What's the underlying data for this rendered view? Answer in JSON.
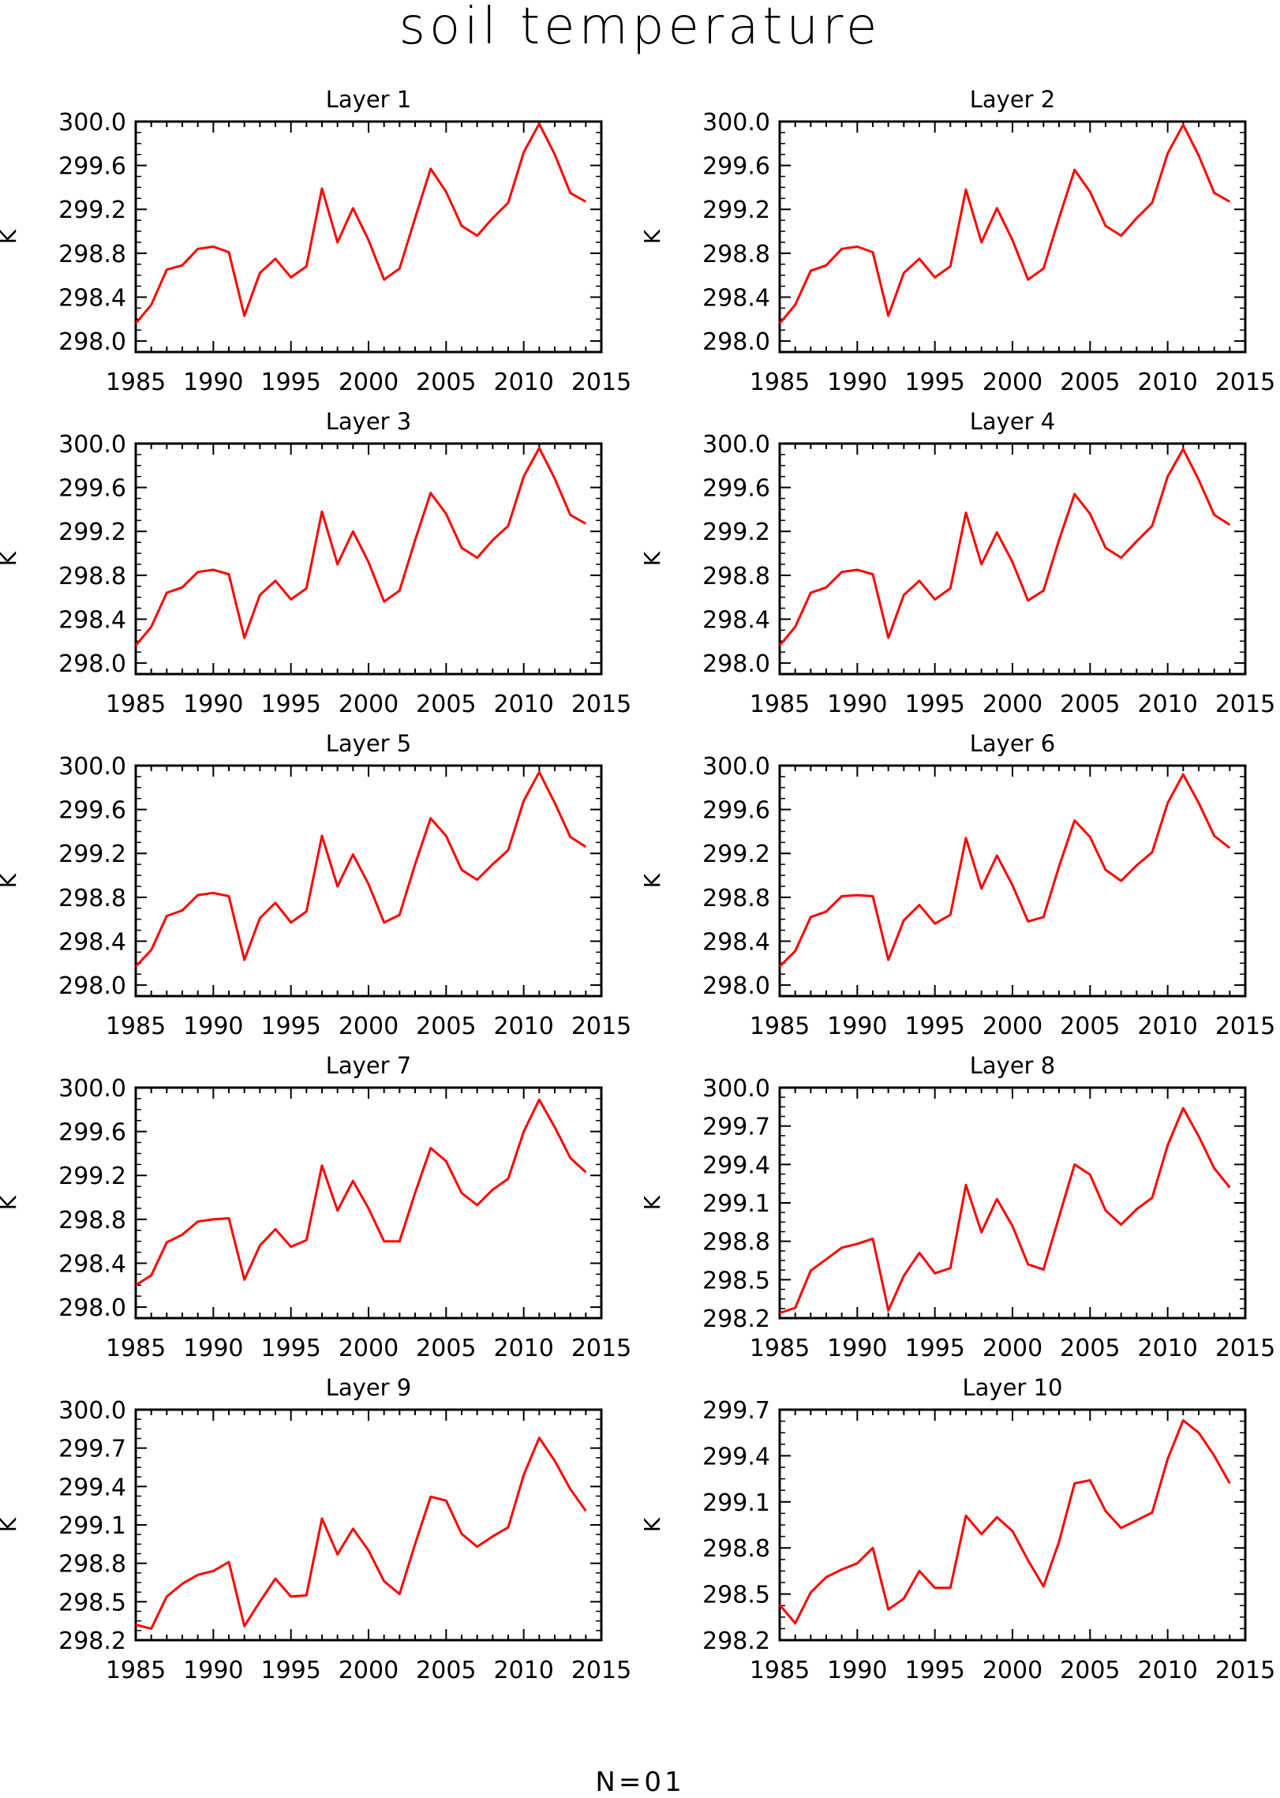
{
  "title": "soil temperature",
  "footer": "N=01",
  "line_color": "#ff0000",
  "chart_data": [
    {
      "type": "line",
      "title": "Layer 1",
      "ylabel": "K",
      "xlabel": "",
      "xlim": [
        1985,
        2015
      ],
      "ylim": [
        297.9,
        300.0
      ],
      "xticks": [
        "1985",
        "1990",
        "1995",
        "2000",
        "2005",
        "2010",
        "2015"
      ],
      "yticks": [
        "298.0",
        "298.4",
        "298.8",
        "299.2",
        "299.6",
        "300.0"
      ],
      "x": [
        1985,
        1986,
        1987,
        1988,
        1989,
        1990,
        1991,
        1992,
        1993,
        1994,
        1995,
        1996,
        1997,
        1998,
        1999,
        2000,
        2001,
        2002,
        2003,
        2004,
        2005,
        2006,
        2007,
        2008,
        2009,
        2010,
        2011,
        2012,
        2013,
        2014
      ],
      "series": [
        {
          "values": [
            298.16,
            298.33,
            298.65,
            298.69,
            298.84,
            298.86,
            298.81,
            298.23,
            298.62,
            298.75,
            298.58,
            298.68,
            299.39,
            298.9,
            299.21,
            298.92,
            298.56,
            298.66,
            299.12,
            299.57,
            299.36,
            299.05,
            298.96,
            299.12,
            299.26,
            299.72,
            299.98,
            299.7,
            299.35,
            299.27
          ]
        }
      ]
    },
    {
      "type": "line",
      "title": "Layer 2",
      "ylabel": "K",
      "xlabel": "",
      "xlim": [
        1985,
        2015
      ],
      "ylim": [
        297.9,
        300.0
      ],
      "xticks": [
        "1985",
        "1990",
        "1995",
        "2000",
        "2005",
        "2010",
        "2015"
      ],
      "yticks": [
        "298.0",
        "298.4",
        "298.8",
        "299.2",
        "299.6",
        "300.0"
      ],
      "x": [
        1985,
        1986,
        1987,
        1988,
        1989,
        1990,
        1991,
        1992,
        1993,
        1994,
        1995,
        1996,
        1997,
        1998,
        1999,
        2000,
        2001,
        2002,
        2003,
        2004,
        2005,
        2006,
        2007,
        2008,
        2009,
        2010,
        2011,
        2012,
        2013,
        2014
      ],
      "series": [
        {
          "values": [
            298.16,
            298.33,
            298.64,
            298.69,
            298.84,
            298.86,
            298.81,
            298.23,
            298.62,
            298.75,
            298.58,
            298.68,
            299.38,
            298.9,
            299.21,
            298.92,
            298.56,
            298.66,
            299.12,
            299.56,
            299.36,
            299.05,
            298.96,
            299.12,
            299.26,
            299.71,
            299.97,
            299.69,
            299.35,
            299.27
          ]
        }
      ]
    },
    {
      "type": "line",
      "title": "Layer 3",
      "ylabel": "K",
      "xlabel": "",
      "xlim": [
        1985,
        2015
      ],
      "ylim": [
        297.9,
        300.0
      ],
      "xticks": [
        "1985",
        "1990",
        "1995",
        "2000",
        "2005",
        "2010",
        "2015"
      ],
      "yticks": [
        "298.0",
        "298.4",
        "298.8",
        "299.2",
        "299.6",
        "300.0"
      ],
      "x": [
        1985,
        1986,
        1987,
        1988,
        1989,
        1990,
        1991,
        1992,
        1993,
        1994,
        1995,
        1996,
        1997,
        1998,
        1999,
        2000,
        2001,
        2002,
        2003,
        2004,
        2005,
        2006,
        2007,
        2008,
        2009,
        2010,
        2011,
        2012,
        2013,
        2014
      ],
      "series": [
        {
          "values": [
            298.16,
            298.33,
            298.64,
            298.69,
            298.83,
            298.85,
            298.81,
            298.23,
            298.62,
            298.75,
            298.58,
            298.68,
            299.38,
            298.9,
            299.2,
            298.92,
            298.56,
            298.66,
            299.12,
            299.55,
            299.36,
            299.05,
            298.96,
            299.12,
            299.25,
            299.7,
            299.96,
            299.68,
            299.35,
            299.27
          ]
        }
      ]
    },
    {
      "type": "line",
      "title": "Layer 4",
      "ylabel": "K",
      "xlabel": "",
      "xlim": [
        1985,
        2015
      ],
      "ylim": [
        297.9,
        300.0
      ],
      "xticks": [
        "1985",
        "1990",
        "1995",
        "2000",
        "2005",
        "2010",
        "2015"
      ],
      "yticks": [
        "298.0",
        "298.4",
        "298.8",
        "299.2",
        "299.6",
        "300.0"
      ],
      "x": [
        1985,
        1986,
        1987,
        1988,
        1989,
        1990,
        1991,
        1992,
        1993,
        1994,
        1995,
        1996,
        1997,
        1998,
        1999,
        2000,
        2001,
        2002,
        2003,
        2004,
        2005,
        2006,
        2007,
        2008,
        2009,
        2010,
        2011,
        2012,
        2013,
        2014
      ],
      "series": [
        {
          "values": [
            298.16,
            298.33,
            298.64,
            298.69,
            298.83,
            298.85,
            298.81,
            298.23,
            298.62,
            298.75,
            298.58,
            298.68,
            299.37,
            298.9,
            299.19,
            298.92,
            298.57,
            298.66,
            299.12,
            299.54,
            299.36,
            299.05,
            298.96,
            299.11,
            299.25,
            299.7,
            299.95,
            299.67,
            299.35,
            299.26
          ]
        }
      ]
    },
    {
      "type": "line",
      "title": "Layer 5",
      "ylabel": "K",
      "xlabel": "",
      "xlim": [
        1985,
        2015
      ],
      "ylim": [
        297.9,
        300.0
      ],
      "xticks": [
        "1985",
        "1990",
        "1995",
        "2000",
        "2005",
        "2010",
        "2015"
      ],
      "yticks": [
        "298.0",
        "298.4",
        "298.8",
        "299.2",
        "299.6",
        "300.0"
      ],
      "x": [
        1985,
        1986,
        1987,
        1988,
        1989,
        1990,
        1991,
        1992,
        1993,
        1994,
        1995,
        1996,
        1997,
        1998,
        1999,
        2000,
        2001,
        2002,
        2003,
        2004,
        2005,
        2006,
        2007,
        2008,
        2009,
        2010,
        2011,
        2012,
        2013,
        2014
      ],
      "series": [
        {
          "values": [
            298.17,
            298.32,
            298.63,
            298.68,
            298.82,
            298.84,
            298.81,
            298.23,
            298.61,
            298.75,
            298.57,
            298.67,
            299.36,
            298.9,
            299.19,
            298.92,
            298.57,
            298.64,
            299.1,
            299.52,
            299.36,
            299.05,
            298.96,
            299.1,
            299.23,
            299.68,
            299.94,
            299.66,
            299.35,
            299.26
          ]
        }
      ]
    },
    {
      "type": "line",
      "title": "Layer 6",
      "ylabel": "K",
      "xlabel": "",
      "xlim": [
        1985,
        2015
      ],
      "ylim": [
        297.9,
        300.0
      ],
      "xticks": [
        "1985",
        "1990",
        "1995",
        "2000",
        "2005",
        "2010",
        "2015"
      ],
      "yticks": [
        "298.0",
        "298.4",
        "298.8",
        "299.2",
        "299.6",
        "300.0"
      ],
      "x": [
        1985,
        1986,
        1987,
        1988,
        1989,
        1990,
        1991,
        1992,
        1993,
        1994,
        1995,
        1996,
        1997,
        1998,
        1999,
        2000,
        2001,
        2002,
        2003,
        2004,
        2005,
        2006,
        2007,
        2008,
        2009,
        2010,
        2011,
        2012,
        2013,
        2014
      ],
      "series": [
        {
          "values": [
            298.17,
            298.31,
            298.62,
            298.67,
            298.81,
            298.82,
            298.81,
            298.23,
            298.59,
            298.73,
            298.56,
            298.64,
            299.34,
            298.88,
            299.18,
            298.91,
            298.58,
            298.62,
            299.08,
            299.5,
            299.35,
            299.05,
            298.95,
            299.09,
            299.21,
            299.66,
            299.92,
            299.66,
            299.36,
            299.25
          ]
        }
      ]
    },
    {
      "type": "line",
      "title": "Layer 7",
      "ylabel": "K",
      "xlabel": "",
      "xlim": [
        1985,
        2015
      ],
      "ylim": [
        297.9,
        300.0
      ],
      "xticks": [
        "1985",
        "1990",
        "1995",
        "2000",
        "2005",
        "2010",
        "2015"
      ],
      "yticks": [
        "298.0",
        "298.4",
        "298.8",
        "299.2",
        "299.6",
        "300.0"
      ],
      "x": [
        1985,
        1986,
        1987,
        1988,
        1989,
        1990,
        1991,
        1992,
        1993,
        1994,
        1995,
        1996,
        1997,
        1998,
        1999,
        2000,
        2001,
        2002,
        2003,
        2004,
        2005,
        2006,
        2007,
        2008,
        2009,
        2010,
        2011,
        2012,
        2013,
        2014
      ],
      "series": [
        {
          "values": [
            298.2,
            298.29,
            298.59,
            298.66,
            298.78,
            298.8,
            298.81,
            298.25,
            298.56,
            298.71,
            298.55,
            298.61,
            299.29,
            298.88,
            299.15,
            298.9,
            298.6,
            298.6,
            299.04,
            299.45,
            299.33,
            299.04,
            298.93,
            299.07,
            299.17,
            299.6,
            299.89,
            299.64,
            299.36,
            299.23
          ]
        }
      ]
    },
    {
      "type": "line",
      "title": "Layer 8",
      "ylabel": "K",
      "xlabel": "",
      "xlim": [
        1985,
        2015
      ],
      "ylim": [
        298.2,
        300.0
      ],
      "xticks": [
        "1985",
        "1990",
        "1995",
        "2000",
        "2005",
        "2010",
        "2015"
      ],
      "yticks": [
        "298.2",
        "298.5",
        "298.8",
        "299.1",
        "299.4",
        "299.7",
        "300.0"
      ],
      "x": [
        1985,
        1986,
        1987,
        1988,
        1989,
        1990,
        1991,
        1992,
        1993,
        1994,
        1995,
        1996,
        1997,
        1998,
        1999,
        2000,
        2001,
        2002,
        2003,
        2004,
        2005,
        2006,
        2007,
        2008,
        2009,
        2010,
        2011,
        2012,
        2013,
        2014
      ],
      "series": [
        {
          "values": [
            298.24,
            298.28,
            298.57,
            298.66,
            298.75,
            298.78,
            298.82,
            298.26,
            298.53,
            298.71,
            298.55,
            298.59,
            299.24,
            298.87,
            299.13,
            298.92,
            298.62,
            298.58,
            298.99,
            299.4,
            299.32,
            299.04,
            298.93,
            299.05,
            299.14,
            299.55,
            299.84,
            299.62,
            299.37,
            299.22
          ]
        }
      ]
    },
    {
      "type": "line",
      "title": "Layer 9",
      "ylabel": "K",
      "xlabel": "",
      "xlim": [
        1985,
        2015
      ],
      "ylim": [
        298.2,
        300.0
      ],
      "xticks": [
        "1985",
        "1990",
        "1995",
        "2000",
        "2005",
        "2010",
        "2015"
      ],
      "yticks": [
        "298.2",
        "298.5",
        "298.8",
        "299.1",
        "299.4",
        "299.7",
        "300.0"
      ],
      "x": [
        1985,
        1986,
        1987,
        1988,
        1989,
        1990,
        1991,
        1992,
        1993,
        1994,
        1995,
        1996,
        1997,
        1998,
        1999,
        2000,
        2001,
        2002,
        2003,
        2004,
        2005,
        2006,
        2007,
        2008,
        2009,
        2010,
        2011,
        2012,
        2013,
        2014
      ],
      "series": [
        {
          "values": [
            298.32,
            298.29,
            298.54,
            298.64,
            298.71,
            298.74,
            298.81,
            298.31,
            298.5,
            298.68,
            298.54,
            298.55,
            299.15,
            298.87,
            299.07,
            298.9,
            298.66,
            298.56,
            298.95,
            299.32,
            299.29,
            299.03,
            298.93,
            299.01,
            299.08,
            299.49,
            299.78,
            299.6,
            299.38,
            299.21
          ]
        }
      ]
    },
    {
      "type": "line",
      "title": "Layer 10",
      "ylabel": "K",
      "xlabel": "",
      "xlim": [
        1985,
        2015
      ],
      "ylim": [
        298.2,
        299.7
      ],
      "xticks": [
        "1985",
        "1990",
        "1995",
        "2000",
        "2005",
        "2010",
        "2015"
      ],
      "yticks": [
        "298.2",
        "298.5",
        "298.8",
        "299.1",
        "299.4",
        "299.7"
      ],
      "x": [
        1985,
        1986,
        1987,
        1988,
        1989,
        1990,
        1991,
        1992,
        1993,
        1994,
        1995,
        1996,
        1997,
        1998,
        1999,
        2000,
        2001,
        2002,
        2003,
        2004,
        2005,
        2006,
        2007,
        2008,
        2009,
        2010,
        2011,
        2012,
        2013,
        2014
      ],
      "series": [
        {
          "values": [
            298.43,
            298.31,
            298.51,
            298.61,
            298.66,
            298.7,
            298.8,
            298.4,
            298.47,
            298.65,
            298.54,
            298.54,
            299.01,
            298.89,
            299.0,
            298.91,
            298.72,
            298.55,
            298.84,
            299.22,
            299.24,
            299.04,
            298.93,
            298.98,
            299.03,
            299.38,
            299.63,
            299.55,
            299.4,
            299.22
          ]
        }
      ]
    }
  ]
}
